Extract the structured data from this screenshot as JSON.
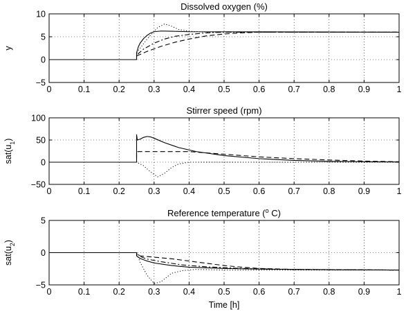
{
  "xlabel": "Time [h]",
  "chart_data": [
    {
      "type": "line",
      "title": "Dissolved oxygen (%)",
      "ylabel": "y",
      "xlim": [
        0,
        1
      ],
      "ylim": [
        -5,
        10
      ],
      "xticks": [
        "0",
        "0.1",
        "0.2",
        "0.3",
        "0.4",
        "0.5",
        "0.6",
        "0.7",
        "0.8",
        "0.9",
        "1"
      ],
      "yticks": [
        "−5",
        "0",
        "5",
        "10"
      ],
      "grid": true,
      "series": [
        {
          "style": "solid",
          "points": [
            [
              0,
              0
            ],
            [
              0.25,
              0
            ],
            [
              0.25,
              1.5
            ],
            [
              0.255,
              2.8
            ],
            [
              0.26,
              3.6
            ],
            [
              0.27,
              4.6
            ],
            [
              0.28,
              5.3
            ],
            [
              0.29,
              5.8
            ],
            [
              0.3,
              6.1
            ],
            [
              0.32,
              6.25
            ],
            [
              0.35,
              6.2
            ],
            [
              0.4,
              6.1
            ],
            [
              1,
              6.0
            ]
          ]
        },
        {
          "style": "dashdot",
          "points": [
            [
              0,
              0
            ],
            [
              0.25,
              0
            ],
            [
              0.25,
              1.0
            ],
            [
              0.27,
              2.3
            ],
            [
              0.3,
              3.6
            ],
            [
              0.33,
              4.5
            ],
            [
              0.36,
              5.1
            ],
            [
              0.4,
              5.5
            ],
            [
              0.45,
              5.85
            ],
            [
              0.5,
              6.0
            ],
            [
              1,
              6.0
            ]
          ]
        },
        {
          "style": "dashed",
          "points": [
            [
              0,
              0
            ],
            [
              0.25,
              0
            ],
            [
              0.25,
              0.8
            ],
            [
              0.28,
              1.8
            ],
            [
              0.32,
              2.9
            ],
            [
              0.36,
              3.8
            ],
            [
              0.4,
              4.5
            ],
            [
              0.45,
              5.2
            ],
            [
              0.5,
              5.6
            ],
            [
              0.55,
              5.85
            ],
            [
              0.6,
              6.0
            ],
            [
              1,
              6.0
            ]
          ]
        },
        {
          "style": "dotted",
          "points": [
            [
              0,
              0
            ],
            [
              0.25,
              0
            ],
            [
              0.25,
              1.5
            ],
            [
              0.28,
              4.5
            ],
            [
              0.31,
              7.0
            ],
            [
              0.33,
              7.8
            ],
            [
              0.35,
              7.3
            ],
            [
              0.37,
              6.6
            ],
            [
              0.4,
              6.2
            ],
            [
              0.45,
              6.0
            ],
            [
              1,
              6.0
            ]
          ]
        }
      ]
    },
    {
      "type": "line",
      "title": "Stirrer speed (rpm)",
      "ylabel": "sat(u",
      "ylabel_sub": "1",
      "ylabel_suffix": ")",
      "xlim": [
        0,
        1
      ],
      "ylim": [
        -50,
        100
      ],
      "xticks": [
        "0",
        "0.1",
        "0.2",
        "0.3",
        "0.4",
        "0.5",
        "0.6",
        "0.7",
        "0.8",
        "0.9",
        "1"
      ],
      "yticks": [
        "−50",
        "0",
        "50",
        "100"
      ],
      "grid": true,
      "series": [
        {
          "style": "solid",
          "points": [
            [
              0,
              0
            ],
            [
              0.25,
              0
            ],
            [
              0.25,
              62
            ],
            [
              0.252,
              50
            ],
            [
              0.26,
              52
            ],
            [
              0.27,
              56
            ],
            [
              0.28,
              58
            ],
            [
              0.29,
              57
            ],
            [
              0.3,
              54
            ],
            [
              0.33,
              44
            ],
            [
              0.37,
              33
            ],
            [
              0.42,
              24
            ],
            [
              0.5,
              15
            ],
            [
              0.6,
              8
            ],
            [
              0.7,
              4
            ],
            [
              0.8,
              2
            ],
            [
              0.9,
              1
            ],
            [
              1,
              0.5
            ]
          ]
        },
        {
          "style": "dashed",
          "points": [
            [
              0,
              0
            ],
            [
              0.25,
              0
            ],
            [
              0.25,
              24
            ],
            [
              0.4,
              24
            ],
            [
              0.45,
              21
            ],
            [
              0.5,
              18
            ],
            [
              0.55,
              15
            ],
            [
              0.6,
              12
            ],
            [
              0.7,
              8
            ],
            [
              0.8,
              5
            ],
            [
              0.9,
              2.5
            ],
            [
              1,
              1
            ]
          ]
        },
        {
          "style": "dotted",
          "points": [
            [
              0,
              0
            ],
            [
              0.25,
              0
            ],
            [
              0.27,
              -8
            ],
            [
              0.29,
              -22
            ],
            [
              0.31,
              -33
            ],
            [
              0.33,
              -25
            ],
            [
              0.35,
              -12
            ],
            [
              0.37,
              -4
            ],
            [
              0.4,
              0
            ],
            [
              1,
              0
            ]
          ]
        }
      ]
    },
    {
      "type": "line",
      "title": "Reference temperature (",
      "title_sup": "o",
      "title_suffix": " C)",
      "ylabel": "sat(u",
      "ylabel_sub": "2",
      "ylabel_suffix": ")",
      "xlim": [
        0,
        1
      ],
      "ylim": [
        -5,
        5
      ],
      "xticks": [
        "0",
        "0.1",
        "0.2",
        "0.3",
        "0.4",
        "0.5",
        "0.6",
        "0.7",
        "0.8",
        "0.9",
        "1"
      ],
      "yticks": [
        "−5",
        "0",
        "5"
      ],
      "grid": true,
      "series": [
        {
          "style": "solid",
          "points": [
            [
              0,
              0
            ],
            [
              0.25,
              0
            ],
            [
              0.25,
              -0.5
            ],
            [
              0.26,
              -0.9
            ],
            [
              0.28,
              -1.3
            ],
            [
              0.3,
              -1.6
            ],
            [
              0.35,
              -2.0
            ],
            [
              0.4,
              -2.25
            ],
            [
              0.5,
              -2.45
            ],
            [
              0.6,
              -2.55
            ],
            [
              0.8,
              -2.65
            ],
            [
              1,
              -2.7
            ]
          ]
        },
        {
          "style": "dashdot",
          "points": [
            [
              0,
              0
            ],
            [
              0.25,
              0
            ],
            [
              0.26,
              -0.6
            ],
            [
              0.28,
              -1.0
            ],
            [
              0.32,
              -1.4
            ],
            [
              0.38,
              -1.9
            ],
            [
              0.45,
              -2.2
            ],
            [
              0.55,
              -2.45
            ],
            [
              0.7,
              -2.6
            ],
            [
              1,
              -2.7
            ]
          ]
        },
        {
          "style": "dashed",
          "points": [
            [
              0,
              0
            ],
            [
              0.25,
              0
            ],
            [
              0.26,
              -0.5
            ],
            [
              0.3,
              -0.7
            ],
            [
              0.35,
              -0.95
            ],
            [
              0.4,
              -1.3
            ],
            [
              0.45,
              -1.65
            ],
            [
              0.5,
              -2.0
            ],
            [
              0.55,
              -2.25
            ],
            [
              0.6,
              -2.45
            ],
            [
              0.7,
              -2.6
            ],
            [
              1,
              -2.7
            ]
          ]
        },
        {
          "style": "dotted",
          "points": [
            [
              0,
              0
            ],
            [
              0.25,
              0
            ],
            [
              0.26,
              -1.5
            ],
            [
              0.28,
              -3.5
            ],
            [
              0.3,
              -4.8
            ],
            [
              0.32,
              -4.5
            ],
            [
              0.35,
              -3.2
            ],
            [
              0.38,
              -2.8
            ],
            [
              0.42,
              -2.6
            ],
            [
              0.5,
              -2.7
            ],
            [
              1,
              -2.7
            ]
          ]
        }
      ]
    }
  ]
}
